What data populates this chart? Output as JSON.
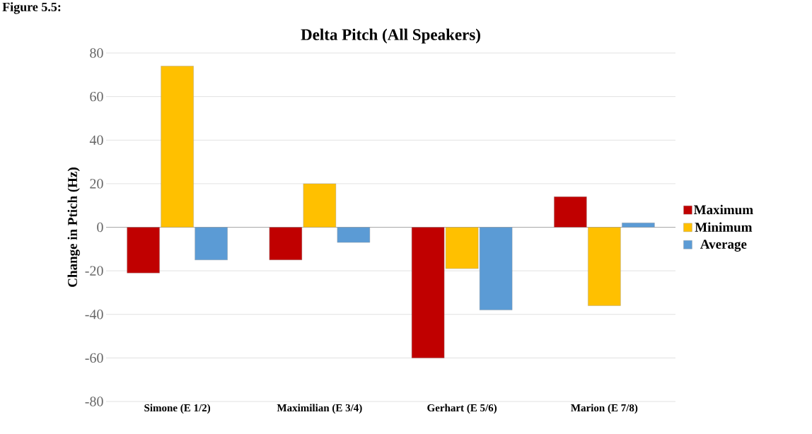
{
  "chart_data": {
    "type": "bar",
    "title": "Delta Pitch (All Speakers)",
    "ylabel": "Change in Ptich (Hz)",
    "annotations": [
      "Figure 5.5:"
    ],
    "categories": [
      "Simone (E 1/2)",
      "Maximilian (E 3/4)",
      "Gerhart (E 5/6)",
      "Marion (E 7/8)"
    ],
    "series": [
      {
        "name": "Maximum",
        "color": "#c00000",
        "values": [
          -21,
          -15,
          -60,
          14
        ]
      },
      {
        "name": "Minimum",
        "color": "#ffc000",
        "values": [
          74,
          20,
          -19,
          -36
        ]
      },
      {
        "name": "Average",
        "color": "#5b9bd5",
        "values": [
          -15,
          -7,
          -38,
          2
        ]
      }
    ],
    "ylim": [
      -80,
      80
    ],
    "yticks": [
      -80,
      -60,
      -40,
      -20,
      0,
      20,
      40,
      60,
      80
    ],
    "grid": "y",
    "legend": "right"
  }
}
